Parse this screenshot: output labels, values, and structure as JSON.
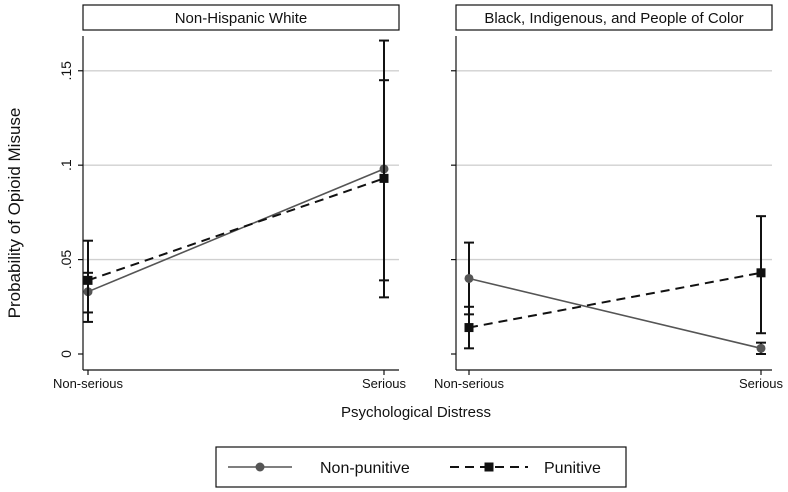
{
  "chart_data": {
    "type": "line",
    "ylabel": "Probability of Opioid Misuse",
    "xlabel": "Psychological Distress",
    "categories": [
      "Non-serious",
      "Serious"
    ],
    "y_ticks": [
      0,
      0.05,
      0.1,
      0.15
    ],
    "y_tick_labels": [
      "0",
      ".05",
      ".1",
      ".15"
    ],
    "ylim": [
      0,
      0.17
    ],
    "grid": true,
    "legend_position": "bottom",
    "legend": [
      {
        "name": "Non-punitive",
        "style": "solid",
        "marker": "circle"
      },
      {
        "name": "Punitive",
        "style": "dashed",
        "marker": "square"
      }
    ],
    "panels": [
      {
        "title": "Non-Hispanic White",
        "series": [
          {
            "name": "Non-punitive",
            "values": [
              0.033,
              0.098
            ],
            "ci_low": [
              0.017,
              0.03
            ],
            "ci_high": [
              0.043,
              0.166
            ]
          },
          {
            "name": "Punitive",
            "values": [
              0.039,
              0.093
            ],
            "ci_low": [
              0.022,
              0.039
            ],
            "ci_high": [
              0.06,
              0.145
            ]
          }
        ]
      },
      {
        "title": "Black, Indigenous, and People of Color",
        "series": [
          {
            "name": "Non-punitive",
            "values": [
              0.04,
              0.003
            ],
            "ci_low": [
              0.021,
              0.0
            ],
            "ci_high": [
              0.059,
              0.006
            ]
          },
          {
            "name": "Punitive",
            "values": [
              0.014,
              0.043
            ],
            "ci_low": [
              0.003,
              0.011
            ],
            "ci_high": [
              0.025,
              0.073
            ]
          }
        ]
      }
    ],
    "colors": {
      "line": "#111111",
      "non_punitive": "#555555",
      "grid": "#d0d0d0"
    }
  }
}
